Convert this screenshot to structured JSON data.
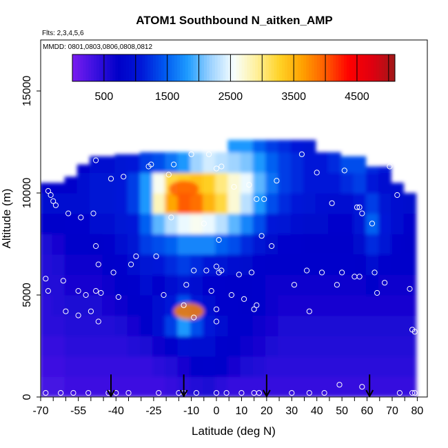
{
  "chart_data": {
    "type": "heatmap",
    "title": "ATOM1 Southbound N_aitken_AMP",
    "flights_note": "Flts: 2,3,4,5,6",
    "dates_note": "MMDD: 0801,0803,0806,0808,0812",
    "xlabel": "Latitude (deg N)",
    "ylabel": "Altitude (m)",
    "xlim": [
      -70,
      84
    ],
    "ylim": [
      0,
      17500
    ],
    "x_ticks": [
      -70,
      -55,
      -40,
      -25,
      -10,
      0,
      10,
      20,
      30,
      40,
      50,
      60,
      70,
      80
    ],
    "x_tick_labels": [
      "-70",
      "-55",
      "-40",
      "-25",
      "-10",
      "0",
      "10",
      "20",
      "30",
      "40",
      "50",
      "60",
      "70",
      "80"
    ],
    "x_ticks_unlabeled": [
      -65,
      -60,
      -50,
      -45,
      -35,
      -30,
      -20,
      -15,
      -5,
      5,
      15,
      25,
      35,
      45,
      55,
      65,
      75
    ],
    "y_ticks": [
      0,
      5000,
      10000,
      15000
    ],
    "y_tick_labels": [
      "0",
      "5000",
      "10000",
      "15000"
    ],
    "colorbar": {
      "min": 0,
      "max": 5100,
      "ticks": [
        500,
        1500,
        2500,
        3500,
        4500
      ],
      "tick_labels": [
        "500",
        "1500",
        "2500",
        "3500",
        "4500"
      ],
      "divisions": [
        500,
        1000,
        1500,
        2000,
        2500,
        3000,
        3500,
        4000,
        4500,
        5000
      ],
      "colors": [
        "#7a1cf0",
        "#3a10e0",
        "#0000c8",
        "#0018d8",
        "#0058f0",
        "#1e9cff",
        "#9cd2ff",
        "#f8ffff",
        "#fff09a",
        "#ffd226",
        "#ffa000",
        "#ff5a00",
        "#ff0000",
        "#e00010",
        "#a01818"
      ],
      "position": "top"
    },
    "field_columns": [
      {
        "lat": -68,
        "top": 10500,
        "values": [
          300,
          350,
          400,
          450,
          450,
          500,
          500,
          550,
          700,
          900,
          800
        ]
      },
      {
        "lat": -63,
        "top": 10500,
        "values": [
          300,
          350,
          400,
          450,
          500,
          500,
          550,
          600,
          700,
          900,
          800
        ]
      },
      {
        "lat": -58,
        "top": 10800,
        "values": [
          350,
          400,
          450,
          500,
          550,
          600,
          650,
          700,
          800,
          900,
          800
        ]
      },
      {
        "lat": -53,
        "top": 11400,
        "values": [
          350,
          400,
          450,
          500,
          550,
          600,
          650,
          700,
          800,
          900,
          900,
          800
        ]
      },
      {
        "lat": -48,
        "top": 11800,
        "values": [
          350,
          400,
          450,
          500,
          550,
          600,
          650,
          750,
          900,
          1000,
          1000,
          900
        ]
      },
      {
        "lat": -43,
        "top": 11800,
        "values": [
          350,
          400,
          450,
          500,
          600,
          650,
          700,
          800,
          900,
          1000,
          1000,
          900
        ]
      },
      {
        "lat": -38,
        "top": 11900,
        "values": [
          350,
          400,
          450,
          550,
          650,
          700,
          800,
          900,
          1000,
          1100,
          1100,
          1000
        ]
      },
      {
        "lat": -33,
        "top": 11900,
        "values": [
          350,
          400,
          500,
          600,
          700,
          800,
          900,
          1000,
          1100,
          1300,
          1300,
          1100
        ]
      },
      {
        "lat": -28,
        "top": 12000,
        "values": [
          350,
          400,
          550,
          700,
          800,
          900,
          1000,
          1300,
          1500,
          1800,
          1800,
          1300
        ]
      },
      {
        "lat": -23,
        "top": 12000,
        "values": [
          350,
          450,
          650,
          900,
          900,
          800,
          1100,
          1400,
          2000,
          2800,
          2600,
          1400
        ]
      },
      {
        "lat": -18,
        "top": 12100,
        "values": [
          400,
          500,
          800,
          1300,
          1100,
          900,
          1200,
          1500,
          2300,
          3600,
          3200,
          1600
        ]
      },
      {
        "lat": -13,
        "top": 12100,
        "values": [
          450,
          600,
          950,
          1800,
          1400,
          1000,
          1300,
          1700,
          2500,
          4000,
          3300,
          1800
        ]
      },
      {
        "lat": -8,
        "top": 12200,
        "values": [
          500,
          700,
          900,
          1400,
          1100,
          900,
          1200,
          1700,
          2600,
          3900,
          3400,
          2200
        ]
      },
      {
        "lat": -3,
        "top": 12200,
        "values": [
          550,
          800,
          900,
          1100,
          900,
          800,
          1100,
          1700,
          2500,
          3500,
          3300,
          2400
        ]
      },
      {
        "lat": 2,
        "top": 12300,
        "values": [
          450,
          700,
          800,
          900,
          800,
          800,
          1000,
          1500,
          2300,
          3200,
          3000,
          2300
        ]
      },
      {
        "lat": 7,
        "top": 12600,
        "values": [
          400,
          600,
          700,
          800,
          800,
          750,
          900,
          1400,
          2000,
          2700,
          2700,
          2200,
          1800
        ]
      },
      {
        "lat": 12,
        "top": 12600,
        "values": [
          400,
          550,
          650,
          700,
          750,
          750,
          850,
          1200,
          1700,
          2300,
          2500,
          2100,
          1800
        ]
      },
      {
        "lat": 17,
        "top": 12600,
        "values": [
          400,
          500,
          600,
          650,
          700,
          700,
          800,
          1000,
          1400,
          1800,
          2000,
          1800,
          1500
        ]
      },
      {
        "lat": 22,
        "top": 12600,
        "values": [
          400,
          450,
          550,
          600,
          650,
          650,
          700,
          850,
          1100,
          1400,
          1600,
          1500,
          1300
        ]
      },
      {
        "lat": 27,
        "top": 12600,
        "values": [
          400,
          450,
          500,
          550,
          600,
          650,
          700,
          800,
          1000,
          1200,
          1300,
          1300,
          1200
        ]
      },
      {
        "lat": 32,
        "top": 12600,
        "values": [
          400,
          450,
          500,
          550,
          600,
          650,
          700,
          800,
          900,
          1100,
          1200,
          1200,
          1100
        ]
      },
      {
        "lat": 37,
        "top": 12600,
        "values": [
          400,
          450,
          500,
          550,
          600,
          650,
          700,
          750,
          850,
          1000,
          1100,
          1100,
          1000
        ]
      },
      {
        "lat": 42,
        "top": 12300,
        "values": [
          400,
          450,
          500,
          550,
          600,
          650,
          700,
          750,
          850,
          950,
          1100,
          1100
        ]
      },
      {
        "lat": 47,
        "top": 12000,
        "values": [
          400,
          450,
          500,
          550,
          600,
          650,
          700,
          750,
          800,
          900,
          1100,
          1200
        ]
      },
      {
        "lat": 52,
        "top": 11800,
        "values": [
          400,
          450,
          500,
          550,
          600,
          650,
          700,
          750,
          800,
          900,
          1200,
          1400
        ]
      },
      {
        "lat": 57,
        "top": 11800,
        "values": [
          400,
          450,
          500,
          550,
          600,
          650,
          750,
          850,
          1000,
          1100,
          1300,
          1400
        ]
      },
      {
        "lat": 62,
        "top": 11300,
        "values": [
          400,
          450,
          500,
          550,
          600,
          700,
          900,
          1200,
          1500,
          1300,
          1100,
          1200
        ]
      },
      {
        "lat": 67,
        "top": 11300,
        "values": [
          400,
          450,
          500,
          550,
          600,
          650,
          800,
          1000,
          1100,
          1000,
          900,
          1100
        ]
      },
      {
        "lat": 72,
        "top": 10500,
        "values": [
          400,
          450,
          500,
          550,
          600,
          650,
          700,
          800,
          900,
          900,
          900
        ]
      },
      {
        "lat": 77,
        "top": 10000,
        "values": [
          400,
          450,
          500,
          550,
          600,
          650,
          700,
          750,
          800,
          850
        ]
      }
    ],
    "field_hotspots": [
      {
        "lat": -13,
        "alt": 10200,
        "value": 4000
      },
      {
        "lat": -11,
        "alt": 4200,
        "value": 3800
      }
    ],
    "observations": [
      {
        "lat": -68,
        "alt": 200
      },
      {
        "lat": -68,
        "alt": 5800
      },
      {
        "lat": -67,
        "alt": 5200
      },
      {
        "lat": -67,
        "alt": 10100
      },
      {
        "lat": -66,
        "alt": 9900
      },
      {
        "lat": -65,
        "alt": 9600
      },
      {
        "lat": -64,
        "alt": 9400
      },
      {
        "lat": -62,
        "alt": 200
      },
      {
        "lat": -61,
        "alt": 5700
      },
      {
        "lat": -60,
        "alt": 4200
      },
      {
        "lat": -59,
        "alt": 9000
      },
      {
        "lat": -57,
        "alt": 200
      },
      {
        "lat": -55,
        "alt": 5200
      },
      {
        "lat": -55,
        "alt": 4000
      },
      {
        "lat": -54,
        "alt": 8800
      },
      {
        "lat": -52,
        "alt": 5000
      },
      {
        "lat": -51,
        "alt": 200
      },
      {
        "lat": -50,
        "alt": 4200
      },
      {
        "lat": -49,
        "alt": 9000
      },
      {
        "lat": -48,
        "alt": 11600
      },
      {
        "lat": -48,
        "alt": 7400
      },
      {
        "lat": -48,
        "alt": 5200
      },
      {
        "lat": -47,
        "alt": 3700
      },
      {
        "lat": -47,
        "alt": 6500
      },
      {
        "lat": -46,
        "alt": 5100
      },
      {
        "lat": -43,
        "alt": 200
      },
      {
        "lat": -42,
        "alt": 10700
      },
      {
        "lat": -41,
        "alt": 6100
      },
      {
        "lat": -40,
        "alt": 200
      },
      {
        "lat": -39,
        "alt": 4900
      },
      {
        "lat": -37,
        "alt": 10800
      },
      {
        "lat": -35,
        "alt": 200
      },
      {
        "lat": -34,
        "alt": 6500
      },
      {
        "lat": -32,
        "alt": 6900
      },
      {
        "lat": -27,
        "alt": 11300
      },
      {
        "lat": -26,
        "alt": 11400
      },
      {
        "lat": -24,
        "alt": 6900
      },
      {
        "lat": -23,
        "alt": 200
      },
      {
        "lat": -21,
        "alt": 5000
      },
      {
        "lat": -19,
        "alt": 10900
      },
      {
        "lat": -18,
        "alt": 8800
      },
      {
        "lat": -17,
        "alt": 11400
      },
      {
        "lat": -15,
        "alt": 200
      },
      {
        "lat": -13,
        "alt": 4500
      },
      {
        "lat": -13,
        "alt": 200
      },
      {
        "lat": -12,
        "alt": 5500
      },
      {
        "lat": -10,
        "alt": 11900
      },
      {
        "lat": -9,
        "alt": 6200
      },
      {
        "lat": -9,
        "alt": 3900
      },
      {
        "lat": -8,
        "alt": 200
      },
      {
        "lat": -5,
        "alt": 8500
      },
      {
        "lat": -4,
        "alt": 6200
      },
      {
        "lat": -3,
        "alt": 11900
      },
      {
        "lat": -2,
        "alt": 5200
      },
      {
        "lat": 0,
        "alt": 6400
      },
      {
        "lat": 0,
        "alt": 4300
      },
      {
        "lat": 0,
        "alt": 3700
      },
      {
        "lat": 0,
        "alt": 200
      },
      {
        "lat": 0,
        "alt": 11200
      },
      {
        "lat": 1,
        "alt": 7700
      },
      {
        "lat": 1,
        "alt": 6100
      },
      {
        "lat": 2,
        "alt": 11300
      },
      {
        "lat": 2,
        "alt": 6200
      },
      {
        "lat": 4,
        "alt": 200
      },
      {
        "lat": 6,
        "alt": 5000
      },
      {
        "lat": 7,
        "alt": 10300
      },
      {
        "lat": 9,
        "alt": 6000
      },
      {
        "lat": 10,
        "alt": 200
      },
      {
        "lat": 11,
        "alt": 4800
      },
      {
        "lat": 13,
        "alt": 10400
      },
      {
        "lat": 14,
        "alt": 6100
      },
      {
        "lat": 15,
        "alt": 4300
      },
      {
        "lat": 15,
        "alt": 200
      },
      {
        "lat": 16,
        "alt": 9700
      },
      {
        "lat": 16,
        "alt": 4500
      },
      {
        "lat": 17,
        "alt": 200
      },
      {
        "lat": 18,
        "alt": 7900
      },
      {
        "lat": 19,
        "alt": 9700
      },
      {
        "lat": 22,
        "alt": 7400
      },
      {
        "lat": 24,
        "alt": 10600
      },
      {
        "lat": 26,
        "alt": 13100
      },
      {
        "lat": 30,
        "alt": 200
      },
      {
        "lat": 31,
        "alt": 5500
      },
      {
        "lat": 34,
        "alt": 11900
      },
      {
        "lat": 36,
        "alt": 6200
      },
      {
        "lat": 37,
        "alt": 4200
      },
      {
        "lat": 37,
        "alt": 200
      },
      {
        "lat": 40,
        "alt": 11000
      },
      {
        "lat": 42,
        "alt": 6100
      },
      {
        "lat": 43,
        "alt": 200
      },
      {
        "lat": 46,
        "alt": 9500
      },
      {
        "lat": 48,
        "alt": 5500
      },
      {
        "lat": 49,
        "alt": 600
      },
      {
        "lat": 50,
        "alt": 6100
      },
      {
        "lat": 51,
        "alt": 11100
      },
      {
        "lat": 55,
        "alt": 5900
      },
      {
        "lat": 56,
        "alt": 9300
      },
      {
        "lat": 57,
        "alt": 5900
      },
      {
        "lat": 57,
        "alt": 9300
      },
      {
        "lat": 58,
        "alt": 9000
      },
      {
        "lat": 58,
        "alt": 500
      },
      {
        "lat": 62,
        "alt": 8500
      },
      {
        "lat": 63,
        "alt": 6100
      },
      {
        "lat": 64,
        "alt": 5100
      },
      {
        "lat": 67,
        "alt": 5600
      },
      {
        "lat": 69,
        "alt": 11300
      },
      {
        "lat": 72,
        "alt": 9900
      },
      {
        "lat": 73,
        "alt": 200
      },
      {
        "lat": 77,
        "alt": 5300
      },
      {
        "lat": 78,
        "alt": 3300
      },
      {
        "lat": 78,
        "alt": 200
      },
      {
        "lat": 79,
        "alt": 3200
      },
      {
        "lat": 79,
        "alt": 200
      }
    ],
    "markers": [
      {
        "lat": -42,
        "alt_range": [
          700,
          0
        ]
      },
      {
        "lat": -13,
        "alt_range": [
          700,
          0
        ]
      },
      {
        "lat": 20,
        "alt_range": [
          700,
          0
        ]
      },
      {
        "lat": 61,
        "alt_range": [
          700,
          0
        ]
      }
    ],
    "grid": false,
    "legend": "colorbar-top"
  }
}
